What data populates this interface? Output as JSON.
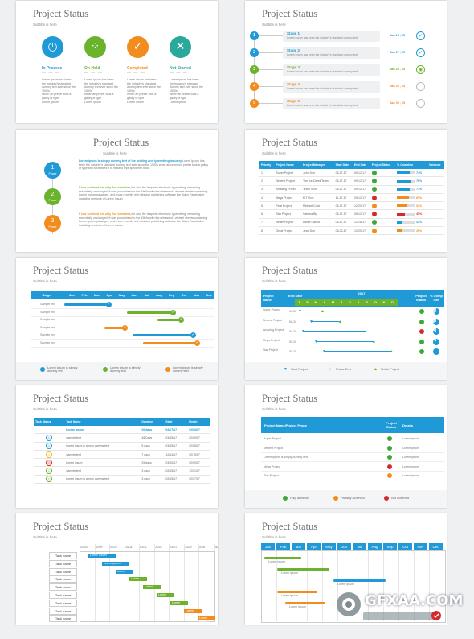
{
  "common": {
    "title": "Project Status",
    "subtitle": "Subtitle is here"
  },
  "slide1": {
    "statuses": [
      {
        "label": "In Process",
        "color": "#1f9ad6",
        "icon": "stopwatch-icon",
        "glyph": "◷"
      },
      {
        "label": "On Hold",
        "color": "#6bb22d",
        "icon": "loading-icon",
        "glyph": "⁘"
      },
      {
        "label": "Completed",
        "color": "#f28c1c",
        "icon": "check-icon",
        "glyph": "✓"
      },
      {
        "label": "Not Started",
        "color": "#2aa89a",
        "icon": "close-icon",
        "glyph": "✕"
      }
    ],
    "dash": "— — —",
    "bullets": [
      "Lorem ipsum has been the industry's standard dummy text ever since the 1500s",
      "When an printer took a galley of type",
      "Lorem ipsum"
    ]
  },
  "slide2": {
    "stages": [
      {
        "num": "1",
        "name": "Stage 1",
        "desc": "Lorem Ipsum has been the industry's standard dummy text.",
        "date": "Jan 15 ,'15",
        "color": "#1f9ad6",
        "check": "✓"
      },
      {
        "num": "2",
        "name": "Stage 2",
        "desc": "Lorem Ipsum has been the industry's standard dummy text.",
        "date": "Jan 17 ,'15",
        "color": "#1f9ad6",
        "check": "✓"
      },
      {
        "num": "3",
        "name": "Stage 3",
        "desc": "Lorem Ipsum has been the industry's standard dummy text.",
        "date": "Jan 23 ,'15",
        "color": "#6bb22d",
        "check": "◉"
      },
      {
        "num": "4",
        "name": "Stage 4",
        "desc": "Lorem Ipsum has been the industry's standard dummy text.",
        "date": "Jan 25 ,'15",
        "color": "#f28c1c",
        "check": ""
      },
      {
        "num": "5",
        "name": "Stage 5",
        "desc": "Lorem Ipsum has been the industry's standard dummy text.",
        "date": "Jan 30 ,'15",
        "color": "#f28c1c",
        "check": ""
      }
    ]
  },
  "slide3": {
    "phases": [
      {
        "num": "1",
        "word": "Phase",
        "color": "#1f9ad6",
        "head": "Lorem ipsum is simply dummy text of the printing and typesetting industry.",
        "body": "Lorem Ipsum has been the industry's standard dummy text ever since the 1500s when an unknown printer took a galley of type and scrambled it to make a type specimen book."
      },
      {
        "num": "2",
        "word": "Phase",
        "color": "#6bb22d",
        "head": "It has survived not only five centuries,",
        "body": "but also the leap into electronic typesetting, remaining essentially unchanged. It was popularised in the 1960s with the release of Letraset sheets containing Lorem Ipsum passages, and more recently with desktop publishing software like Aldus PageMaker including versions of Lorem Ipsum."
      },
      {
        "num": "3",
        "word": "Phase",
        "color": "#f28c1c",
        "head": "It has survived not only five centuries,",
        "body": "but also the leap into electronic typesetting, remaining essentially unchanged. It was popularised in the 1960s with the release of Letraset sheets containing Lorem Ipsum passages, and more recently with desktop publishing software like Aldus PageMaker including versions of Lorem Ipsum."
      }
    ]
  },
  "slide4": {
    "headers": [
      "Priority",
      "Project Name",
      "Project Manager",
      "Start Date",
      "End Date",
      "Project Status",
      "% Complete",
      "Variance"
    ],
    "rows": [
      {
        "p": "1",
        "name": "Super Project",
        "mgr": "John Doe",
        "s": "06-17-17",
        "e": "09-12-17",
        "status": "#3aa935",
        "pct": "74%",
        "pc": "#1f9ad6",
        "var": "74"
      },
      {
        "p": "2",
        "name": "Newest Project",
        "mgr": "The Ice Cared Team",
        "s": "06-17-17",
        "e": "09-12-17",
        "status": "#3aa935",
        "pct": "76%",
        "pc": "#1f9ad6",
        "var": "76"
      },
      {
        "p": "3",
        "name": "Amazing Project",
        "mgr": "Team Tech",
        "s": "06-17-17",
        "e": "09-12-17",
        "status": "#3aa935",
        "pct": "71%",
        "pc": "#1f9ad6",
        "var": "71"
      },
      {
        "p": "4",
        "name": "Mega Project",
        "mgr": "BIT Firm",
        "s": "11-17-17",
        "e": "09-12-17",
        "status": "#d62a2a",
        "pct": "69%",
        "pc": "#f28c1c",
        "var": "69"
      },
      {
        "p": "5",
        "name": "Final Project",
        "mgr": "Michael Cook",
        "s": "06-17-17",
        "e": "12-20-17",
        "status": "#f28c1c",
        "pct": "54%",
        "pc": "#f28c1c",
        "var": "54"
      },
      {
        "p": "6",
        "name": "Star Project",
        "mgr": "Sabrina Big",
        "s": "06-17-17",
        "e": "06-12-17",
        "status": "#d62a2a",
        "pct": "45%",
        "pc": "#d62a2a",
        "var": "45"
      },
      {
        "p": "7",
        "name": "Better Project",
        "mgr": "Lance Carica",
        "s": "06-17-17",
        "e": "12-18-17",
        "status": "#3aa935",
        "pct": "32%",
        "pc": "#1f9ad6",
        "var": "32"
      },
      {
        "p": "8",
        "name": "Great Project",
        "mgr": "Jean Doe",
        "s": "06-20-17",
        "e": "12-20-17",
        "status": "#f28c1c",
        "pct": "26%",
        "pc": "#f28c1c",
        "var": "26"
      }
    ]
  },
  "slide5": {
    "stage_header": "Stage",
    "months": [
      "Jan",
      "Feb",
      "Mar",
      "Apr",
      "May",
      "Jun",
      "Jul",
      "Aug",
      "Sep",
      "Oct",
      "Nov",
      "Dec"
    ],
    "row_label": "Sample text",
    "legend": [
      {
        "text": "Lorem ipsum is simply dummy text",
        "color": "#1f9ad6"
      },
      {
        "text": "Lorem ipsum is simply dummy text",
        "color": "#6bb22d"
      },
      {
        "text": "Lorem ipsum is simply dummy text",
        "color": "#f28c1c"
      }
    ]
  },
  "slide6": {
    "year": "2017",
    "headers": [
      "Project Name",
      "End Date",
      "Project Status",
      "% Comp lete"
    ],
    "months": [
      "J",
      "F",
      "M",
      "A",
      "M",
      "J",
      "J",
      "A",
      "S",
      "O",
      "N",
      "D"
    ],
    "rows": [
      {
        "name": "Super Project",
        "date": "07-20"
      },
      {
        "name": "Newest Project",
        "date": "08-20"
      },
      {
        "name": "Amazing Project",
        "date": "09-20"
      },
      {
        "name": "Mega Project",
        "date": "05-20"
      },
      {
        "name": "Star Project",
        "date": "05-20"
      }
    ],
    "legend": [
      "Start Project",
      "Phase End",
      "Finish Project"
    ]
  },
  "slide7": {
    "headers": [
      "Task Status",
      "Task Name",
      "Duration",
      "Start",
      "Finish"
    ],
    "rows": [
      {
        "name": "Lorem ipsum",
        "dur": "20 days",
        "s": "02/07/17",
        "f": "02/03/17",
        "mood": "",
        "bold": true
      },
      {
        "name": "Sample text",
        "dur": "45 Days",
        "s": "03/05/17",
        "f": "02/09/17",
        "mood": "☺",
        "color": "#1f9ad6"
      },
      {
        "name": "Lorem ipsum is simply dummy text",
        "dur": "5 days",
        "s": "03/05/17",
        "f": "02/05/17",
        "mood": "☺",
        "color": "#1f9ad6"
      },
      {
        "name": "Sample text",
        "dur": "7 days",
        "s": "12/14/17",
        "f": "02/19/17",
        "mood": "☺",
        "color": "#f2b81c"
      },
      {
        "name": "Lorem ipsum",
        "dur": "29 days",
        "s": "03/20/17",
        "f": "02/09/17",
        "mood": "☹",
        "color": "#d62a2a"
      },
      {
        "name": "Sample text",
        "dur": "3 days",
        "s": "02/05/17",
        "f": "12/01/17",
        "mood": "☺",
        "color": "#6bb22d"
      },
      {
        "name": "Lorem ipsum is simply dummy text",
        "dur": "3 days",
        "s": "02/05/17",
        "f": "02/07/17",
        "mood": "☺",
        "color": "#6bb22d"
      }
    ]
  },
  "slide8": {
    "headers": [
      "Project Name/Project Phase",
      "Project Status",
      "Details"
    ],
    "rows": [
      {
        "name": "Super Project",
        "status": "#3aa935",
        "detail": "Lorem ipsum"
      },
      {
        "name": "Newest Project",
        "status": "#3aa935",
        "detail": "Lorem ipsum"
      },
      {
        "name": "Lorem ipsum is simply dummy text",
        "status": "#3aa935",
        "detail": "Lorem ipsum"
      },
      {
        "name": "Mega Project",
        "status": "#d62a2a",
        "detail": "Lorem ipsum"
      },
      {
        "name": "Star Project",
        "status": "#f28c1c",
        "detail": "Lorem ipsum"
      }
    ],
    "legend": [
      {
        "text": "Fully achieved",
        "color": "#3aa935"
      },
      {
        "text": "Partially achieved",
        "color": "#f28c1c"
      },
      {
        "text": "Not achieved",
        "color": "#d62a2a"
      }
    ]
  },
  "slide9": {
    "dates": [
      "02/02",
      "02/09",
      "02/22",
      "03/04",
      "03/11",
      "03/16",
      "03/21",
      "03/29",
      "04/6",
      "04/18"
    ],
    "task_label": "Task name",
    "bar_label": "Lorem ipsum"
  },
  "slide10": {
    "months": [
      "Jan",
      "Feb",
      "Mar",
      "Apr",
      "May",
      "Jun",
      "Jul",
      "Aug",
      "Sep",
      "Oct",
      "Nov",
      "Dec"
    ],
    "bar_label": "Lorem ipsum"
  },
  "watermark": {
    "text": "GFXAA.COM"
  }
}
